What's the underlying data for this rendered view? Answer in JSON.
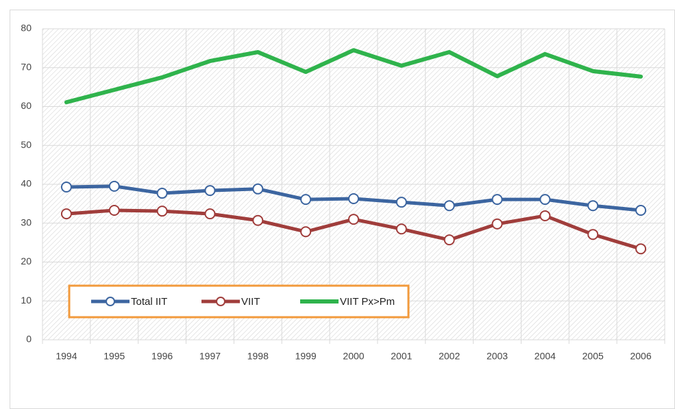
{
  "chart_data": {
    "type": "line",
    "categories": [
      "1994",
      "1995",
      "1996",
      "1997",
      "1998",
      "1999",
      "2000",
      "2001",
      "2002",
      "2003",
      "2004",
      "2005",
      "2006"
    ],
    "series": [
      {
        "name": "Total IIT",
        "color": "#3c65a0",
        "marker": true,
        "values": [
          39.3,
          39.5,
          37.7,
          38.4,
          38.8,
          36.1,
          36.3,
          35.4,
          34.5,
          36.1,
          36.1,
          34.5,
          33.3
        ]
      },
      {
        "name": "VIIT",
        "color": "#a03d3b",
        "marker": true,
        "values": [
          32.4,
          33.3,
          33.1,
          32.4,
          30.7,
          27.8,
          31.0,
          28.5,
          25.7,
          29.8,
          31.9,
          27.1,
          23.4
        ]
      },
      {
        "name": "VIIT Px>Pm",
        "color": "#2fb34c",
        "marker": false,
        "values": [
          61.1,
          64.3,
          67.5,
          71.7,
          74.0,
          68.9,
          74.5,
          70.5,
          74.0,
          67.8,
          73.5,
          69.1,
          67.7
        ]
      }
    ],
    "ylim": [
      0,
      80
    ],
    "yticks": [
      0,
      10,
      20,
      30,
      40,
      50,
      60,
      70,
      80
    ],
    "grid": true,
    "legend": "lower left"
  }
}
